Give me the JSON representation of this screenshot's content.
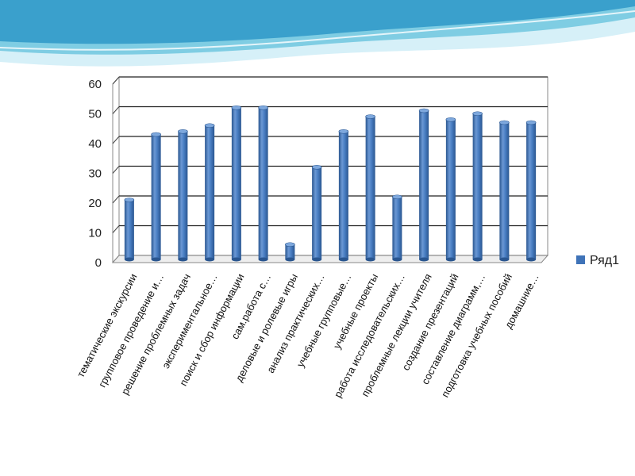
{
  "chart_data": {
    "type": "bar",
    "title": "",
    "xlabel": "",
    "ylabel": "",
    "ylim": [
      0,
      60
    ],
    "yticks": [
      0,
      10,
      20,
      30,
      40,
      50,
      60
    ],
    "grid": true,
    "legend_position": "right",
    "style": "3d-cylinder",
    "categories": [
      "тематические экскурсии",
      "групповое проведение и…",
      "решение проблемных задач",
      "экспериментальное…",
      "поиск и сбор информации",
      "сам.работа с…",
      "деловые и ролевые игры",
      "анализ практических…",
      "учебные групповые…",
      "учебные проекты",
      "работа исследовательских…",
      "проблемные лекции учителя",
      "создание презентаций",
      "составление диаграмм,…",
      "подготовка учебных пособий",
      "домашние…"
    ],
    "series": [
      {
        "name": "Ряд1",
        "color": "#3f73b8",
        "values": [
          20,
          42,
          43,
          45,
          51,
          51,
          5,
          31,
          43,
          48,
          21,
          50,
          47,
          49,
          46,
          46
        ]
      }
    ]
  },
  "colors": {
    "header_wave_light": "#bfe6f3",
    "header_wave_mid": "#6cc4de",
    "header_wave_dark": "#2a8fbf",
    "bar_fill": "#3f73b8",
    "bar_dark": "#2a5690",
    "bar_light": "#6b98d4",
    "gridline": "#222222",
    "wall": "#ffffff"
  }
}
